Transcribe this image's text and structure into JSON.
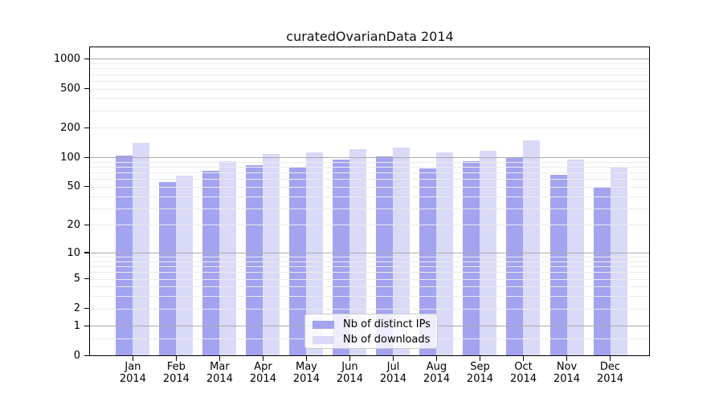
{
  "window": {
    "kind": "static-plot"
  },
  "chart_data": {
    "type": "bar",
    "title": "curatedOvarianData 2014",
    "categories": [
      "Jan 2014",
      "Feb 2014",
      "Mar 2014",
      "Apr 2014",
      "May 2014",
      "Jun 2014",
      "Jul 2014",
      "Aug 2014",
      "Sep 2014",
      "Oct 2014",
      "Nov 2014",
      "Dec 2014"
    ],
    "series": [
      {
        "name": "Nb of distinct IPs",
        "color": "#a3a3f0",
        "values": [
          105,
          56,
          73,
          84,
          78,
          95,
          103,
          77,
          91,
          99,
          66,
          50
        ]
      },
      {
        "name": "Nb of downloads",
        "color": "#d9d9f8",
        "values": [
          142,
          65,
          92,
          108,
          113,
          121,
          125,
          112,
          116,
          149,
          95,
          78
        ]
      }
    ],
    "y_scale": "log1p",
    "ylim": [
      0,
      1310
    ],
    "y_axis_ticks": [
      0,
      1,
      2,
      5,
      10,
      20,
      50,
      100,
      200,
      500,
      1000
    ],
    "y_major_gridlines": [
      1,
      10,
      100,
      1000
    ],
    "y_minor_gridlines": [
      0.5,
      2,
      3,
      4,
      5,
      6,
      7,
      8,
      9,
      20,
      30,
      40,
      50,
      60,
      70,
      80,
      90,
      200,
      300,
      400,
      500,
      600,
      700,
      800,
      900
    ],
    "grid": true,
    "grid_over_bars": true,
    "legend_position": "inside-bottom-center",
    "xlabel": "",
    "ylabel": ""
  },
  "colors": {
    "background": "#ffffff",
    "axis": "#000000",
    "grid_major": "#ababab",
    "grid_minor": "#ebebeb",
    "legend_border": "#cccccc",
    "bar_distinct_ips": "#a3a3f0",
    "bar_downloads": "#d9d9f8"
  }
}
